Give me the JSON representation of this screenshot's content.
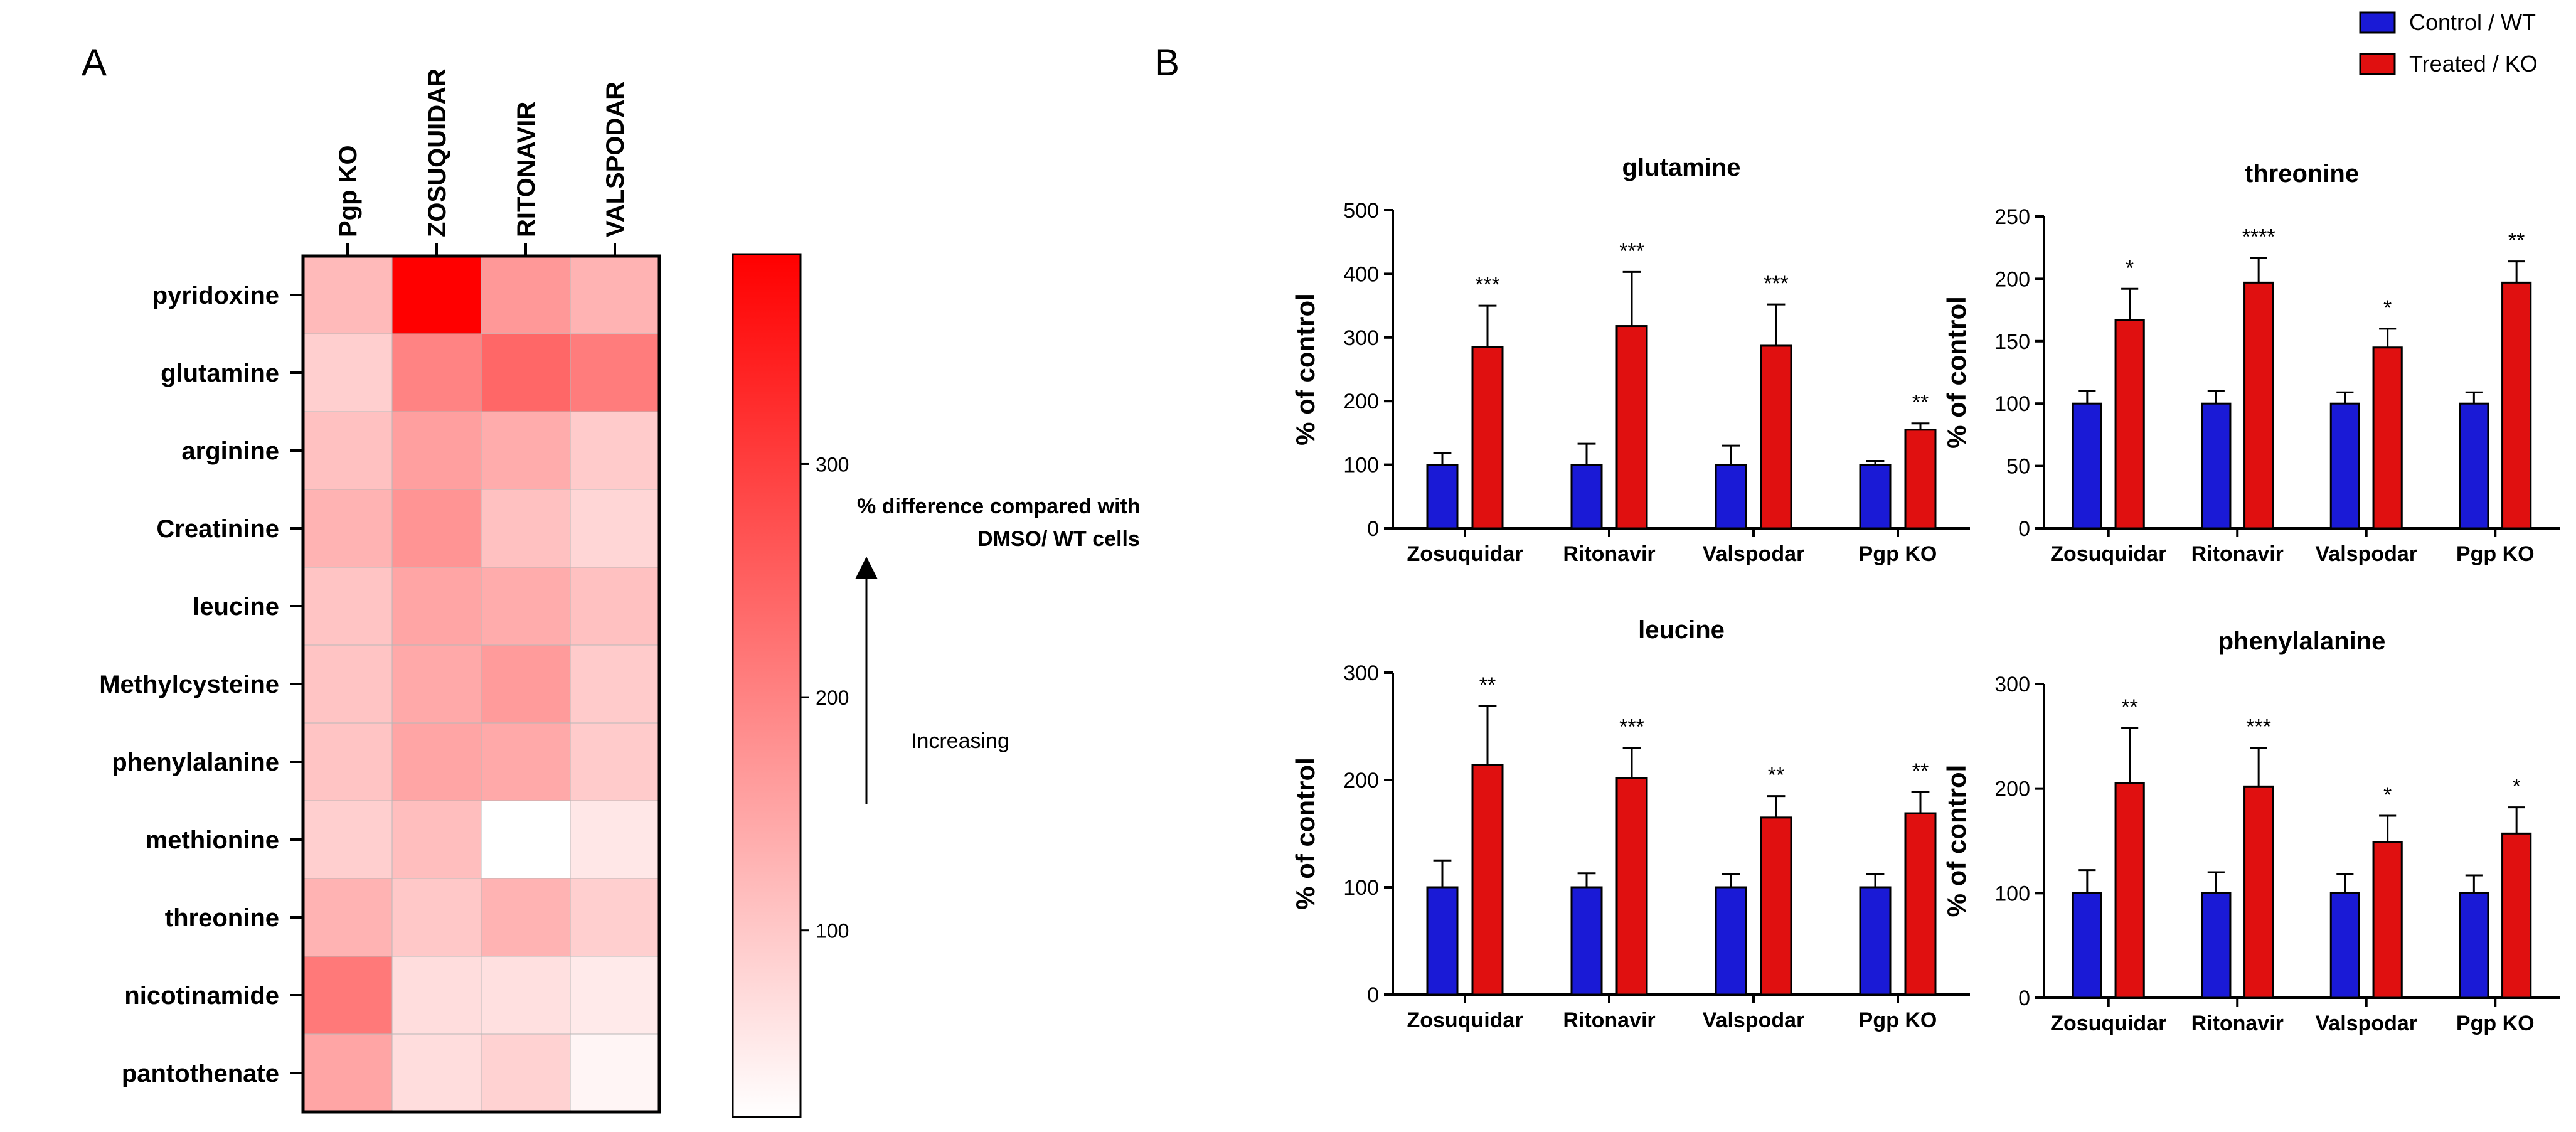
{
  "panel_labels": {
    "a": "A",
    "b": "B"
  },
  "legend": {
    "items": [
      {
        "label": "Control / WT",
        "color": "#1a1ad6"
      },
      {
        "label": "Treated / KO",
        "color": "#e01010"
      }
    ]
  },
  "colorbar": {
    "ticks": [
      100,
      200,
      300
    ],
    "caption_line1": "% difference compared with",
    "caption_line2": "DMSO/ WT cells",
    "increasing_label": "Increasing"
  },
  "chart_data": [
    {
      "type": "heatmap",
      "columns": [
        "Pgp KO",
        "ZOSUQUIDAR",
        "RITONAVIR",
        "VALSPODAR"
      ],
      "rows": [
        "pyridoxine",
        "glutamine",
        "arginine",
        "Creatinine",
        "leucine",
        "Methylcysteine",
        "phenylalanine",
        "methionine",
        "threonine",
        "nicotinamide",
        "pantothenate"
      ],
      "values": [
        [
          120,
          390,
          170,
          130
        ],
        [
          90,
          200,
          240,
          210
        ],
        [
          110,
          160,
          140,
          95
        ],
        [
          130,
          175,
          110,
          80
        ],
        [
          105,
          150,
          140,
          110
        ],
        [
          105,
          145,
          165,
          95
        ],
        [
          105,
          150,
          145,
          95
        ],
        [
          90,
          115,
          20,
          55
        ],
        [
          130,
          100,
          130,
          90
        ],
        [
          215,
          70,
          65,
          50
        ],
        [
          150,
          70,
          85,
          35
        ]
      ],
      "color_range": [
        20,
        390
      ],
      "colormap": [
        "#ffffff",
        "#ff0000"
      ]
    },
    {
      "type": "bar",
      "title": "glutamine",
      "ylabel": "% of control",
      "categories": [
        "Zosuquidar",
        "Ritonavir",
        "Valspodar",
        "Pgp KO"
      ],
      "ylim": [
        0,
        500
      ],
      "yticks": [
        0,
        100,
        200,
        300,
        400,
        500
      ],
      "series": [
        {
          "name": "Control / WT",
          "values": [
            100,
            100,
            100,
            100
          ],
          "errors": [
            18,
            33,
            30,
            6
          ]
        },
        {
          "name": "Treated / KO",
          "values": [
            285,
            318,
            287,
            155
          ],
          "errors": [
            65,
            85,
            65,
            10
          ]
        }
      ],
      "significance": [
        "***",
        "***",
        "***",
        "**"
      ]
    },
    {
      "type": "bar",
      "title": "threonine",
      "ylabel": "% of control",
      "categories": [
        "Zosuquidar",
        "Ritonavir",
        "Valspodar",
        "Pgp KO"
      ],
      "ylim": [
        0,
        250
      ],
      "yticks": [
        0,
        50,
        100,
        150,
        200,
        250
      ],
      "series": [
        {
          "name": "Control / WT",
          "values": [
            100,
            100,
            100,
            100
          ],
          "errors": [
            10,
            10,
            9,
            9
          ]
        },
        {
          "name": "Treated / KO",
          "values": [
            167,
            197,
            145,
            197
          ],
          "errors": [
            25,
            20,
            15,
            17
          ]
        }
      ],
      "significance": [
        "*",
        "****",
        "*",
        "**"
      ]
    },
    {
      "type": "bar",
      "title": "leucine",
      "ylabel": "% of control",
      "categories": [
        "Zosuquidar",
        "Ritonavir",
        "Valspodar",
        "Pgp KO"
      ],
      "ylim": [
        0,
        300
      ],
      "yticks": [
        0,
        100,
        200,
        300
      ],
      "series": [
        {
          "name": "Control / WT",
          "values": [
            100,
            100,
            100,
            100
          ],
          "errors": [
            25,
            13,
            12,
            12
          ]
        },
        {
          "name": "Treated / KO",
          "values": [
            214,
            202,
            165,
            169
          ],
          "errors": [
            55,
            28,
            20,
            20
          ]
        }
      ],
      "significance": [
        "**",
        "***",
        "**",
        "**"
      ]
    },
    {
      "type": "bar",
      "title": "phenylalanine",
      "ylabel": "% of control",
      "categories": [
        "Zosuquidar",
        "Ritonavir",
        "Valspodar",
        "Pgp KO"
      ],
      "ylim": [
        0,
        300
      ],
      "yticks": [
        0,
        100,
        200,
        300
      ],
      "series": [
        {
          "name": "Control / WT",
          "values": [
            100,
            100,
            100,
            100
          ],
          "errors": [
            22,
            20,
            18,
            17
          ]
        },
        {
          "name": "Treated / KO",
          "values": [
            205,
            202,
            149,
            157
          ],
          "errors": [
            53,
            37,
            25,
            25
          ]
        }
      ],
      "significance": [
        "**",
        "***",
        "*",
        "*"
      ]
    }
  ]
}
